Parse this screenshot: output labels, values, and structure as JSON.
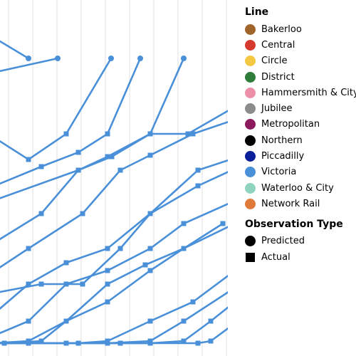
{
  "chart_data": {
    "type": "line",
    "line_color": "#4a90d9",
    "gridlines": "vertical",
    "legend": {
      "placement": "right",
      "line_title": "Line",
      "lines": [
        {
          "name": "Bakerloo",
          "color": "#a0652a"
        },
        {
          "name": "Central",
          "color": "#d63a2e"
        },
        {
          "name": "Circle",
          "color": "#f4c842"
        },
        {
          "name": "District",
          "color": "#2e7d3a"
        },
        {
          "name": "Hammersmith & City",
          "color": "#ec8fa8"
        },
        {
          "name": "Jubilee",
          "color": "#8c8c8c"
        },
        {
          "name": "Metropolitan",
          "color": "#8c1a5c"
        },
        {
          "name": "Northern",
          "color": "#000000"
        },
        {
          "name": "Piccadilly",
          "color": "#0a1f99"
        },
        {
          "name": "Victoria",
          "color": "#4a90d9"
        },
        {
          "name": "Waterloo & City",
          "color": "#8ed4bf"
        },
        {
          "name": "Network Rail",
          "color": "#e07a3a"
        }
      ],
      "observation_title": "Observation Type",
      "observation_types": [
        {
          "name": "Predicted",
          "shape": "circle"
        },
        {
          "name": "Actual",
          "shape": "square"
        }
      ]
    },
    "series": [
      {
        "points": [
          [
            -10,
            -430,
            "a"
          ],
          [
            40,
            -400,
            "p"
          ]
        ]
      },
      {
        "points": [
          [
            -10,
            -380,
            "a"
          ],
          [
            81,
            -400,
            "p"
          ]
        ]
      },
      {
        "points": [
          [
            -10,
            -290,
            "a"
          ],
          [
            40,
            -258,
            "a"
          ],
          [
            93,
            -294,
            "a"
          ],
          [
            156,
            -400,
            "p"
          ]
        ]
      },
      {
        "points": [
          [
            -10,
            -220,
            "a"
          ],
          [
            58,
            -248,
            "a"
          ],
          [
            110,
            -268,
            "a"
          ],
          [
            151,
            -294,
            "a"
          ],
          [
            197,
            -400,
            "p"
          ]
        ]
      },
      {
        "points": [
          [
            -10,
            -200,
            "a"
          ],
          [
            110,
            -243,
            "a"
          ],
          [
            151,
            -262,
            "a"
          ],
          [
            211,
            -294,
            "a"
          ],
          [
            258,
            -400,
            "p"
          ]
        ]
      },
      {
        "points": [
          [
            -10,
            -140,
            "a"
          ],
          [
            58,
            -182,
            "a"
          ],
          [
            110,
            -243,
            "a"
          ],
          [
            157,
            -262,
            "a"
          ],
          [
            211,
            -294,
            "a"
          ],
          [
            264,
            -294,
            "a"
          ],
          [
            330,
            -332,
            "a"
          ]
        ]
      },
      {
        "points": [
          [
            -10,
            -100,
            "a"
          ],
          [
            40,
            -133,
            "a"
          ],
          [
            116,
            -182,
            "a"
          ],
          [
            169,
            -243,
            "a"
          ],
          [
            211,
            -264,
            "a"
          ],
          [
            271,
            -294,
            "a"
          ],
          [
            330,
            -314,
            "a"
          ]
        ]
      },
      {
        "points": [
          [
            -10,
            -70,
            "a"
          ],
          [
            58,
            -83,
            "a"
          ],
          [
            116,
            -83,
            "a"
          ],
          [
            169,
            -133,
            "a"
          ],
          [
            211,
            -182,
            "a"
          ],
          [
            278,
            -243,
            "a"
          ],
          [
            330,
            -260,
            "a"
          ]
        ]
      },
      {
        "points": [
          [
            -10,
            -40,
            "a"
          ],
          [
            40,
            -83,
            "a"
          ],
          [
            93,
            -113,
            "a"
          ],
          [
            151,
            -133,
            "a"
          ],
          [
            211,
            -182,
            "a"
          ],
          [
            278,
            -221,
            "a"
          ],
          [
            330,
            -245,
            "a"
          ]
        ]
      },
      {
        "points": [
          [
            -10,
            -10,
            "a"
          ],
          [
            40,
            -31,
            "a"
          ],
          [
            93,
            -83,
            "a"
          ],
          [
            151,
            -102,
            "a"
          ],
          [
            211,
            -133,
            "a"
          ],
          [
            258,
            -168,
            "a"
          ],
          [
            330,
            -200,
            "a"
          ]
        ]
      },
      {
        "points": [
          [
            -10,
            0,
            "a"
          ],
          [
            40,
            -3,
            "a"
          ],
          [
            93,
            -31,
            "a"
          ],
          [
            151,
            -83,
            "a"
          ],
          [
            204,
            -110,
            "a"
          ],
          [
            258,
            -133,
            "a"
          ],
          [
            313,
            -168,
            "a"
          ]
        ]
      },
      {
        "points": [
          [
            -10,
            0,
            "a"
          ],
          [
            6,
            0,
            "a"
          ],
          [
            58,
            -3,
            "a"
          ],
          [
            93,
            -31,
            "a"
          ],
          [
            151,
            -58,
            "a"
          ],
          [
            211,
            -102,
            "a"
          ],
          [
            258,
            -133,
            "a"
          ],
          [
            330,
            -168,
            "a"
          ]
        ]
      },
      {
        "points": [
          [
            -10,
            0,
            "a"
          ],
          [
            40,
            0,
            "a"
          ],
          [
            110,
            0,
            "a"
          ],
          [
            151,
            -3,
            "a"
          ],
          [
            211,
            -31,
            "a"
          ],
          [
            271,
            -58,
            "a"
          ],
          [
            330,
            -102,
            "a"
          ]
        ]
      },
      {
        "points": [
          [
            -10,
            0,
            "a"
          ],
          [
            93,
            0,
            "a"
          ],
          [
            151,
            0,
            "a"
          ],
          [
            211,
            -3,
            "a"
          ],
          [
            258,
            -31,
            "a"
          ],
          [
            330,
            -78,
            "a"
          ]
        ]
      },
      {
        "points": [
          [
            -10,
            0,
            "a"
          ],
          [
            169,
            0,
            "a"
          ],
          [
            211,
            0,
            "a"
          ],
          [
            258,
            -3,
            "a"
          ],
          [
            296,
            -31,
            "a"
          ],
          [
            330,
            -58,
            "a"
          ]
        ]
      },
      {
        "points": [
          [
            -10,
            0,
            "a"
          ],
          [
            278,
            0,
            "a"
          ],
          [
            296,
            -3,
            "a"
          ],
          [
            330,
            -28,
            "a"
          ]
        ]
      }
    ]
  }
}
